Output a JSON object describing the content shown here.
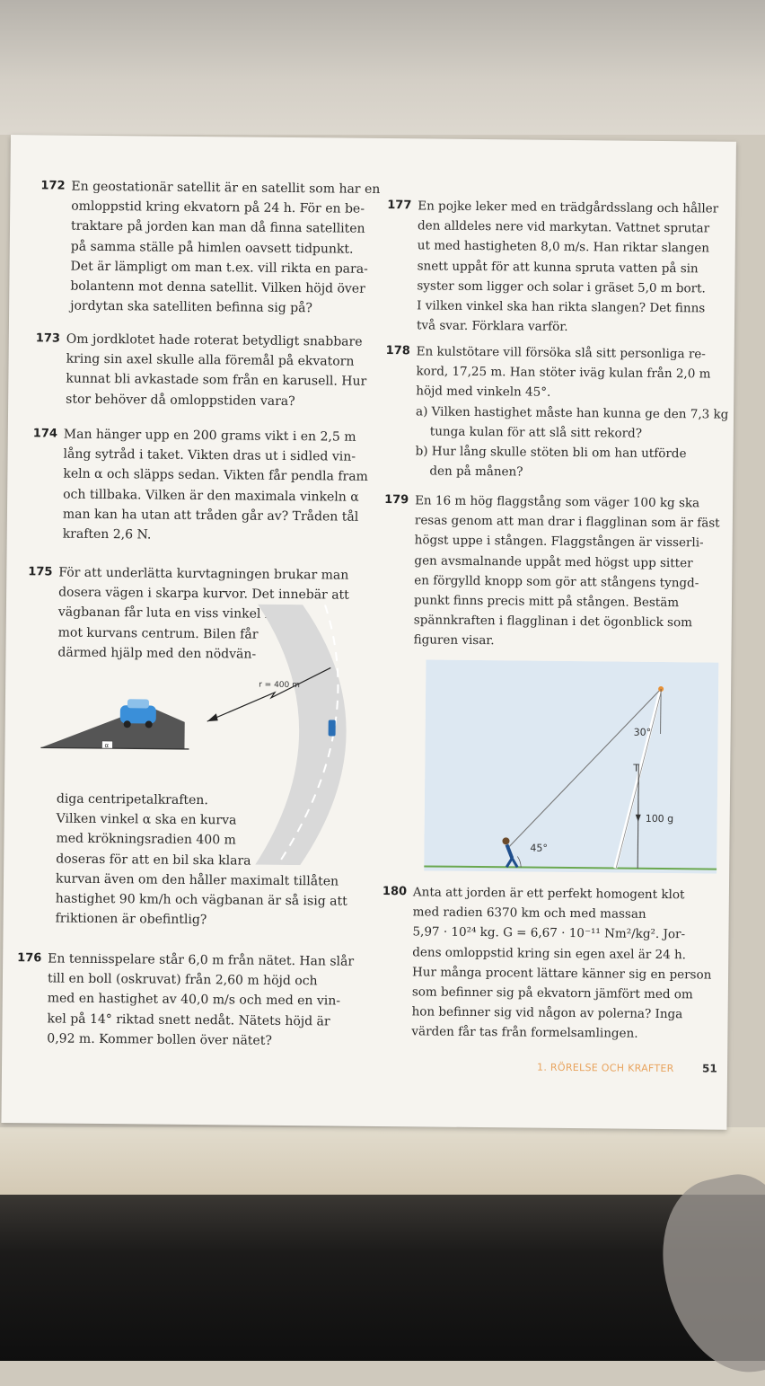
{
  "footer": {
    "chapter": "1. RÖRELSE OCH KRAFTER",
    "page_number": "51"
  },
  "problems": [
    {
      "number": "172",
      "lines": [
        "En geostationär satellit är en satellit som har en",
        "omloppstid kring ekvatorn på 24 h. För en be-",
        "traktare på jorden kan man då finna satelliten",
        "på samma ställe på himlen oavsett tidpunkt.",
        "Det är lämpligt om man t.ex. vill rikta en para-",
        "bolantenn mot denna satellit. Vilken höjd över",
        "jordytan ska satelliten befinna sig på?"
      ]
    },
    {
      "number": "173",
      "lines": [
        "Om jordklotet hade roterat betydligt snabbare",
        "kring sin axel skulle alla föremål på ekvatorn",
        "kunnat bli avkastade som från en karusell. Hur",
        "stor behöver då omloppstiden vara?"
      ]
    },
    {
      "number": "174",
      "lines": [
        "Man hänger upp en 200 grams vikt i en 2,5 m",
        "lång sytråd i taket. Vikten dras ut i sidled vin-",
        "keln α och släpps sedan. Vikten får pendla fram",
        "och tillbaka. Vilken är den maximala vinkeln α",
        "man kan ha utan att tråden går av? Tråden tål",
        "kraften 2,6 N."
      ]
    },
    {
      "number": "175",
      "lines_top": [
        "För att underlätta kurvtagningen brukar man",
        "dosera vägen i skarpa kurvor. Det innebär att",
        "vägbanan får luta en viss vinkel in",
        "mot kurvans centrum. Bilen får",
        "därmed hjälp med den nödvän-"
      ],
      "lines_bottom": [
        "diga centripetalkraften.",
        "Vilken vinkel α ska en kurva",
        "med krökningsradien 400 m",
        "doseras för att en bil ska klara",
        "kurvan även om den håller maximalt tillåten",
        "hastighet 90 km/h och vägbanan är så isig att",
        "friktionen är obefintlig?"
      ],
      "figure": {
        "radius_label": "r = 400 m",
        "angle_label": "α"
      }
    },
    {
      "number": "176",
      "lines": [
        "En tennisspelare står 6,0 m från nätet. Han slår",
        "till en boll (oskruvat) från 2,60 m höjd och",
        "med en hastighet av 40,0 m/s och med en vin-",
        "kel på 14° riktad snett nedåt. Nätets höjd är",
        "0,92 m. Kommer bollen över nätet?"
      ]
    },
    {
      "number": "177",
      "lines": [
        "En pojke leker med en trädgårdsslang och håller",
        "den alldeles nere vid markytan. Vattnet sprutar",
        "ut med hastigheten 8,0 m/s. Han riktar slangen",
        "snett uppåt för att kunna spruta vatten på sin",
        "syster som ligger och solar i gräset 5,0 m bort.",
        "I vilken vinkel ska han rikta slangen? Det finns",
        "två svar. Förklara varför."
      ]
    },
    {
      "number": "178",
      "lines": [
        "En kulstötare vill försöka slå sitt personliga re-",
        "kord, 17,25 m. Han stöter iväg kulan från 2,0 m",
        "höjd med vinkeln 45°."
      ],
      "parts": [
        "a) Vilken hastighet måste han kunna ge den 7,3 kg",
        "tunga kulan för att slå sitt rekord?",
        "b) Hur lång skulle stöten bli om han utförde",
        "den på månen?"
      ]
    },
    {
      "number": "179",
      "lines": [
        "En 16 m hög flaggstång som väger 100 kg ska",
        "resas genom att man drar i flagglinan som är fäst",
        "högst uppe i stången. Flaggstången är visserli-",
        "gen avsmalnande uppåt med högst upp sitter",
        "en förgylld knopp som gör att stångens tyngd-",
        "punkt finns precis mitt på stången. Bestäm",
        "spännkraften i flagglinan i det ögonblick som",
        "figuren visar."
      ],
      "figure": {
        "top_angle": "30°",
        "tension_label": "T",
        "weight_label": "100 g",
        "ground_angle": "45°"
      }
    },
    {
      "number": "180",
      "lines": [
        "Anta att jorden är ett perfekt homogent klot",
        "med radien 6370 km och med massan",
        "5,97 · 10²⁴ kg. G = 6,67 · 10⁻¹¹ Nm²/kg². Jor-",
        "dens omloppstid kring sin egen axel är 24 h.",
        "Hur många procent lättare känner sig en person",
        "som befinner sig på ekvatorn jämfört med om",
        "hon befinner sig vid någon av polerna? Inga",
        "värden får tas från formelsamlingen."
      ]
    }
  ]
}
